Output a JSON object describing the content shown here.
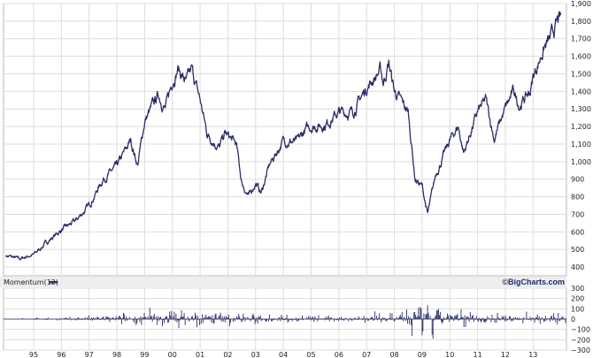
{
  "chart_data": [
    {
      "type": "line",
      "x_tick_labels": [
        "95",
        "96",
        "97",
        "98",
        "99",
        "00",
        "01",
        "02",
        "03",
        "04",
        "05",
        "06",
        "07",
        "08",
        "09",
        "10",
        "11",
        "12",
        "13"
      ],
      "y_tick_labels": [
        "400",
        "500",
        "600",
        "700",
        "800",
        "900",
        "1,000",
        "1,100",
        "1,200",
        "1,300",
        "1,400",
        "1,500",
        "1,600",
        "1,700",
        "1,800",
        "1,900"
      ],
      "y_tick_values": [
        400,
        500,
        600,
        700,
        800,
        900,
        1000,
        1100,
        1200,
        1300,
        1400,
        1500,
        1600,
        1700,
        1800,
        1900
      ],
      "ylim": [
        350,
        1900
      ],
      "x_range": [
        1994.0,
        2014.0
      ],
      "grid": true,
      "series": [
        {
          "color": "#2b2d66",
          "points": [
            [
              1994.0,
              465
            ],
            [
              1994.25,
              455
            ],
            [
              1994.5,
              445
            ],
            [
              1994.75,
              460
            ],
            [
              1995.0,
              470
            ],
            [
              1995.5,
              545
            ],
            [
              1996.0,
              610
            ],
            [
              1996.5,
              660
            ],
            [
              1997.0,
              750
            ],
            [
              1997.5,
              900
            ],
            [
              1998.0,
              970
            ],
            [
              1998.5,
              1120
            ],
            [
              1998.75,
              980
            ],
            [
              1999.0,
              1230
            ],
            [
              1999.5,
              1380
            ],
            [
              1999.75,
              1300
            ],
            [
              2000.0,
              1460
            ],
            [
              2000.2,
              1530
            ],
            [
              2000.5,
              1450
            ],
            [
              2000.7,
              1520
            ],
            [
              2001.0,
              1350
            ],
            [
              2001.25,
              1160
            ],
            [
              2001.7,
              1080
            ],
            [
              2001.9,
              1160
            ],
            [
              2002.3,
              1100
            ],
            [
              2002.5,
              880
            ],
            [
              2002.75,
              800
            ],
            [
              2003.0,
              880
            ],
            [
              2003.2,
              820
            ],
            [
              2003.5,
              980
            ],
            [
              2004.0,
              1120
            ],
            [
              2004.5,
              1110
            ],
            [
              2004.8,
              1180
            ],
            [
              2005.0,
              1200
            ],
            [
              2005.5,
              1210
            ],
            [
              2006.0,
              1280
            ],
            [
              2006.5,
              1280
            ],
            [
              2007.0,
              1420
            ],
            [
              2007.5,
              1520
            ],
            [
              2007.6,
              1450
            ],
            [
              2007.8,
              1560
            ],
            [
              2008.0,
              1400
            ],
            [
              2008.5,
              1280
            ],
            [
              2008.75,
              900
            ],
            [
              2009.0,
              860
            ],
            [
              2009.2,
              700
            ],
            [
              2009.5,
              930
            ],
            [
              2010.0,
              1120
            ],
            [
              2010.3,
              1200
            ],
            [
              2010.5,
              1050
            ],
            [
              2011.0,
              1280
            ],
            [
              2011.3,
              1350
            ],
            [
              2011.6,
              1130
            ],
            [
              2011.8,
              1220
            ],
            [
              2012.0,
              1300
            ],
            [
              2012.3,
              1400
            ],
            [
              2012.5,
              1320
            ],
            [
              2012.9,
              1400
            ],
            [
              2013.0,
              1480
            ],
            [
              2013.4,
              1650
            ],
            [
              2013.6,
              1690
            ],
            [
              2013.9,
              1800
            ],
            [
              2014.0,
              1810
            ]
          ]
        }
      ]
    },
    {
      "type": "bar",
      "panel_label": "Momentum(12)",
      "brand": "©BigCharts.com",
      "y_tick_labels": [
        "300",
        "200",
        "100",
        "0",
        "−100",
        "−200",
        "−300"
      ],
      "y_tick_values": [
        300,
        200,
        100,
        0,
        -100,
        -200,
        -300
      ],
      "ylim": [
        -300,
        300
      ],
      "x_range": [
        1994.0,
        2014.0
      ],
      "grid": true,
      "series": [
        {
          "color": "#2b2d66",
          "amplitude_by_year": [
            [
              1994.0,
              10
            ],
            [
              1996.0,
              20
            ],
            [
              1998.0,
              60
            ],
            [
              1999.0,
              100
            ],
            [
              2000.0,
              130
            ],
            [
              2001.0,
              120
            ],
            [
              2002.0,
              90
            ],
            [
              2003.0,
              80
            ],
            [
              2004.0,
              45
            ],
            [
              2006.0,
              45
            ],
            [
              2007.0,
              70
            ],
            [
              2008.0,
              110
            ],
            [
              2009.0,
              180
            ],
            [
              2010.0,
              110
            ],
            [
              2011.0,
              110
            ],
            [
              2012.0,
              70
            ],
            [
              2013.0,
              80
            ],
            [
              2014.0,
              90
            ]
          ]
        }
      ]
    }
  ]
}
